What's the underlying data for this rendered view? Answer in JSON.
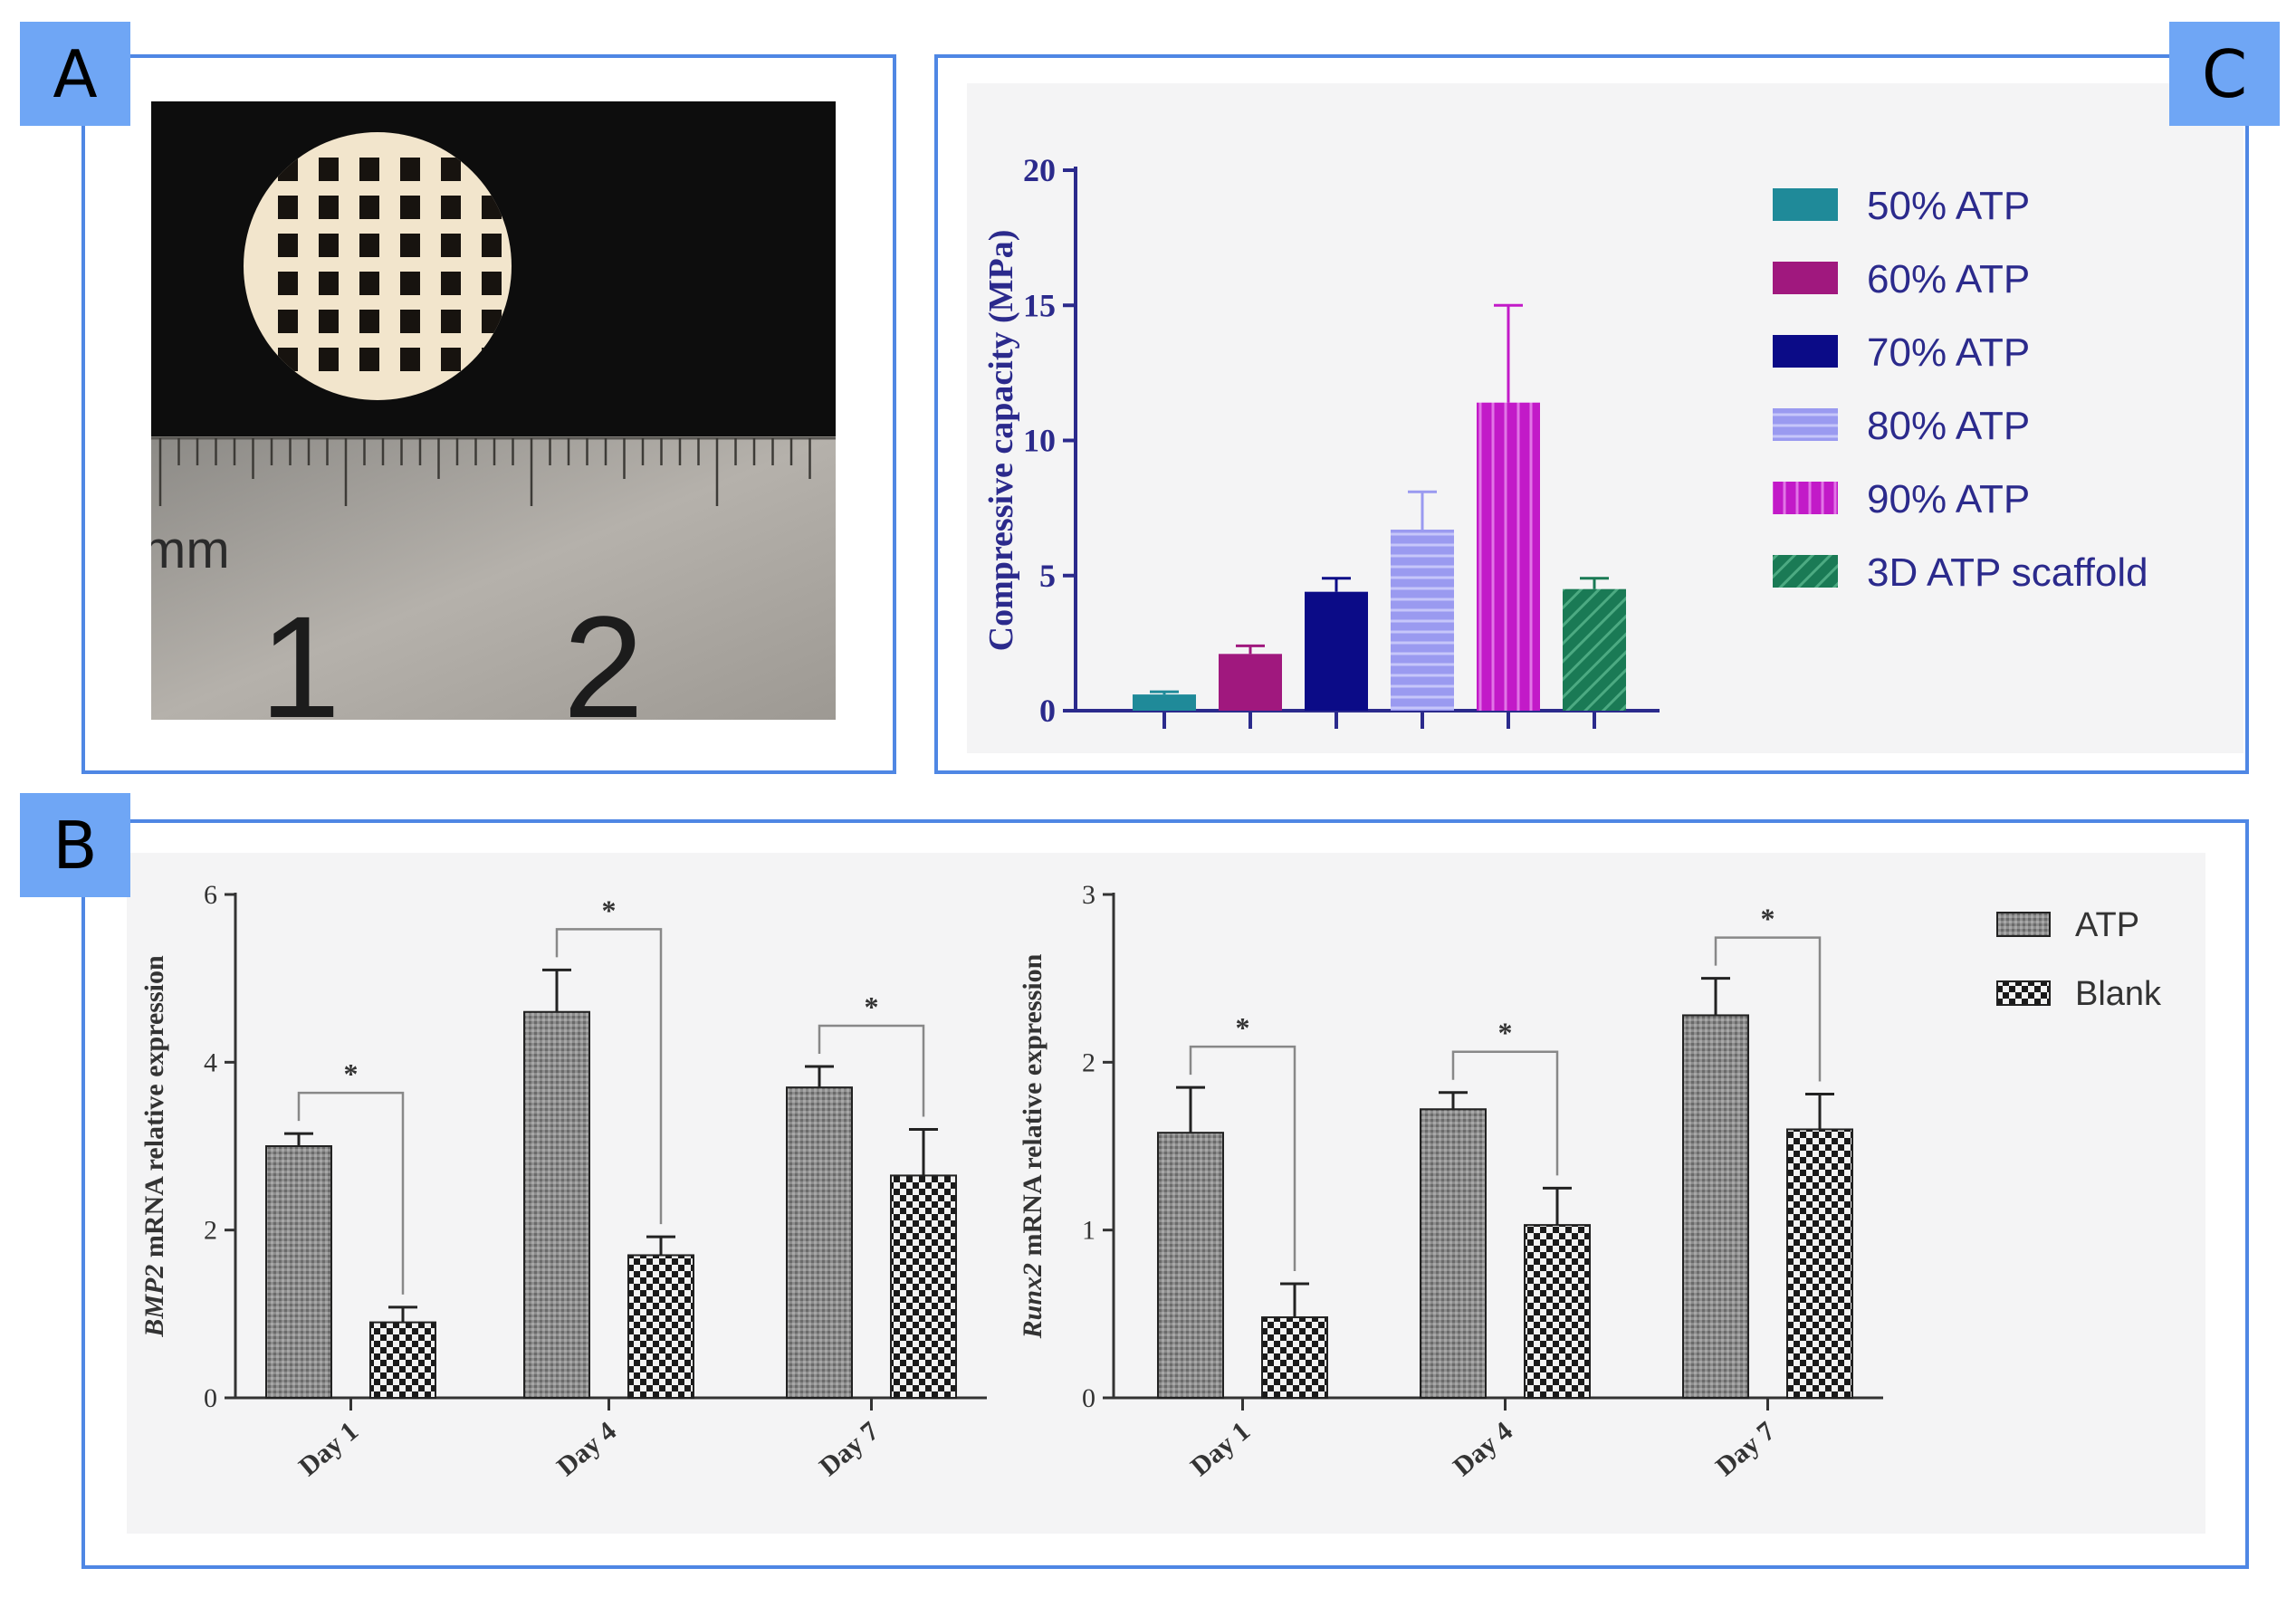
{
  "panels": {
    "a_label": "A",
    "b_label": "B",
    "c_label": "C"
  },
  "photo": {
    "ruler_unit": "mm",
    "ruler_numbers": [
      "1",
      "2"
    ]
  },
  "colors": {
    "panel_border": "#4f87e4",
    "label_bg": "#6fa6f5",
    "chart_text": "#2b2a8c",
    "bar_gray": "#8a8a8a"
  },
  "chart_data": [
    {
      "id": "C",
      "type": "bar",
      "ylabel": "Compressive capacity (MPa)",
      "ylim": [
        0,
        20
      ],
      "yticks": [
        0,
        5,
        10,
        15,
        20
      ],
      "series": [
        {
          "name": "50% ATP",
          "value": 0.6,
          "error": 0.1,
          "color": "#1f8a99"
        },
        {
          "name": "60% ATP",
          "value": 2.1,
          "error": 0.3,
          "color": "#a0187e"
        },
        {
          "name": "70% ATP",
          "value": 4.4,
          "error": 0.5,
          "color": "#0b0b87"
        },
        {
          "name": "80% ATP",
          "value": 6.7,
          "error": 1.4,
          "color": "#9a9af0"
        },
        {
          "name": "90% ATP",
          "value": 11.4,
          "error": 3.6,
          "color": "#c21ac8"
        },
        {
          "name": "3D ATP scaffold",
          "value": 4.5,
          "error": 0.4,
          "color": "#1a7a55"
        }
      ],
      "grid": false,
      "legend_position": "right"
    },
    {
      "id": "B-left",
      "type": "bar",
      "ylabel_italic": "BMP2",
      "ylabel_rest": " mRNA  relative expression",
      "ylim": [
        0,
        6
      ],
      "yticks": [
        0,
        2,
        4,
        6
      ],
      "categories": [
        "Day 1",
        "Day 4",
        "Day 7"
      ],
      "series": [
        {
          "name": "ATP",
          "values": [
            3.0,
            4.6,
            3.7
          ],
          "errors": [
            0.15,
            0.5,
            0.25
          ]
        },
        {
          "name": "Blank",
          "values": [
            0.9,
            1.7,
            2.65
          ],
          "errors": [
            0.18,
            0.22,
            0.55
          ]
        }
      ],
      "significance": [
        "*",
        "*",
        "*"
      ]
    },
    {
      "id": "B-right",
      "type": "bar",
      "ylabel_italic": "Runx2",
      "ylabel_rest": " mRNA  relative expression",
      "ylim": [
        0,
        3
      ],
      "yticks": [
        0,
        1,
        2,
        3
      ],
      "categories": [
        "Day 1",
        "Day 4",
        "Day 7"
      ],
      "series": [
        {
          "name": "ATP",
          "values": [
            1.58,
            1.72,
            2.28
          ],
          "errors": [
            0.27,
            0.1,
            0.22
          ]
        },
        {
          "name": "Blank",
          "values": [
            0.48,
            1.03,
            1.6
          ],
          "errors": [
            0.2,
            0.22,
            0.21
          ]
        }
      ],
      "significance": [
        "*",
        "*",
        "*"
      ]
    }
  ],
  "legend_b": [
    "ATP",
    "Blank"
  ]
}
